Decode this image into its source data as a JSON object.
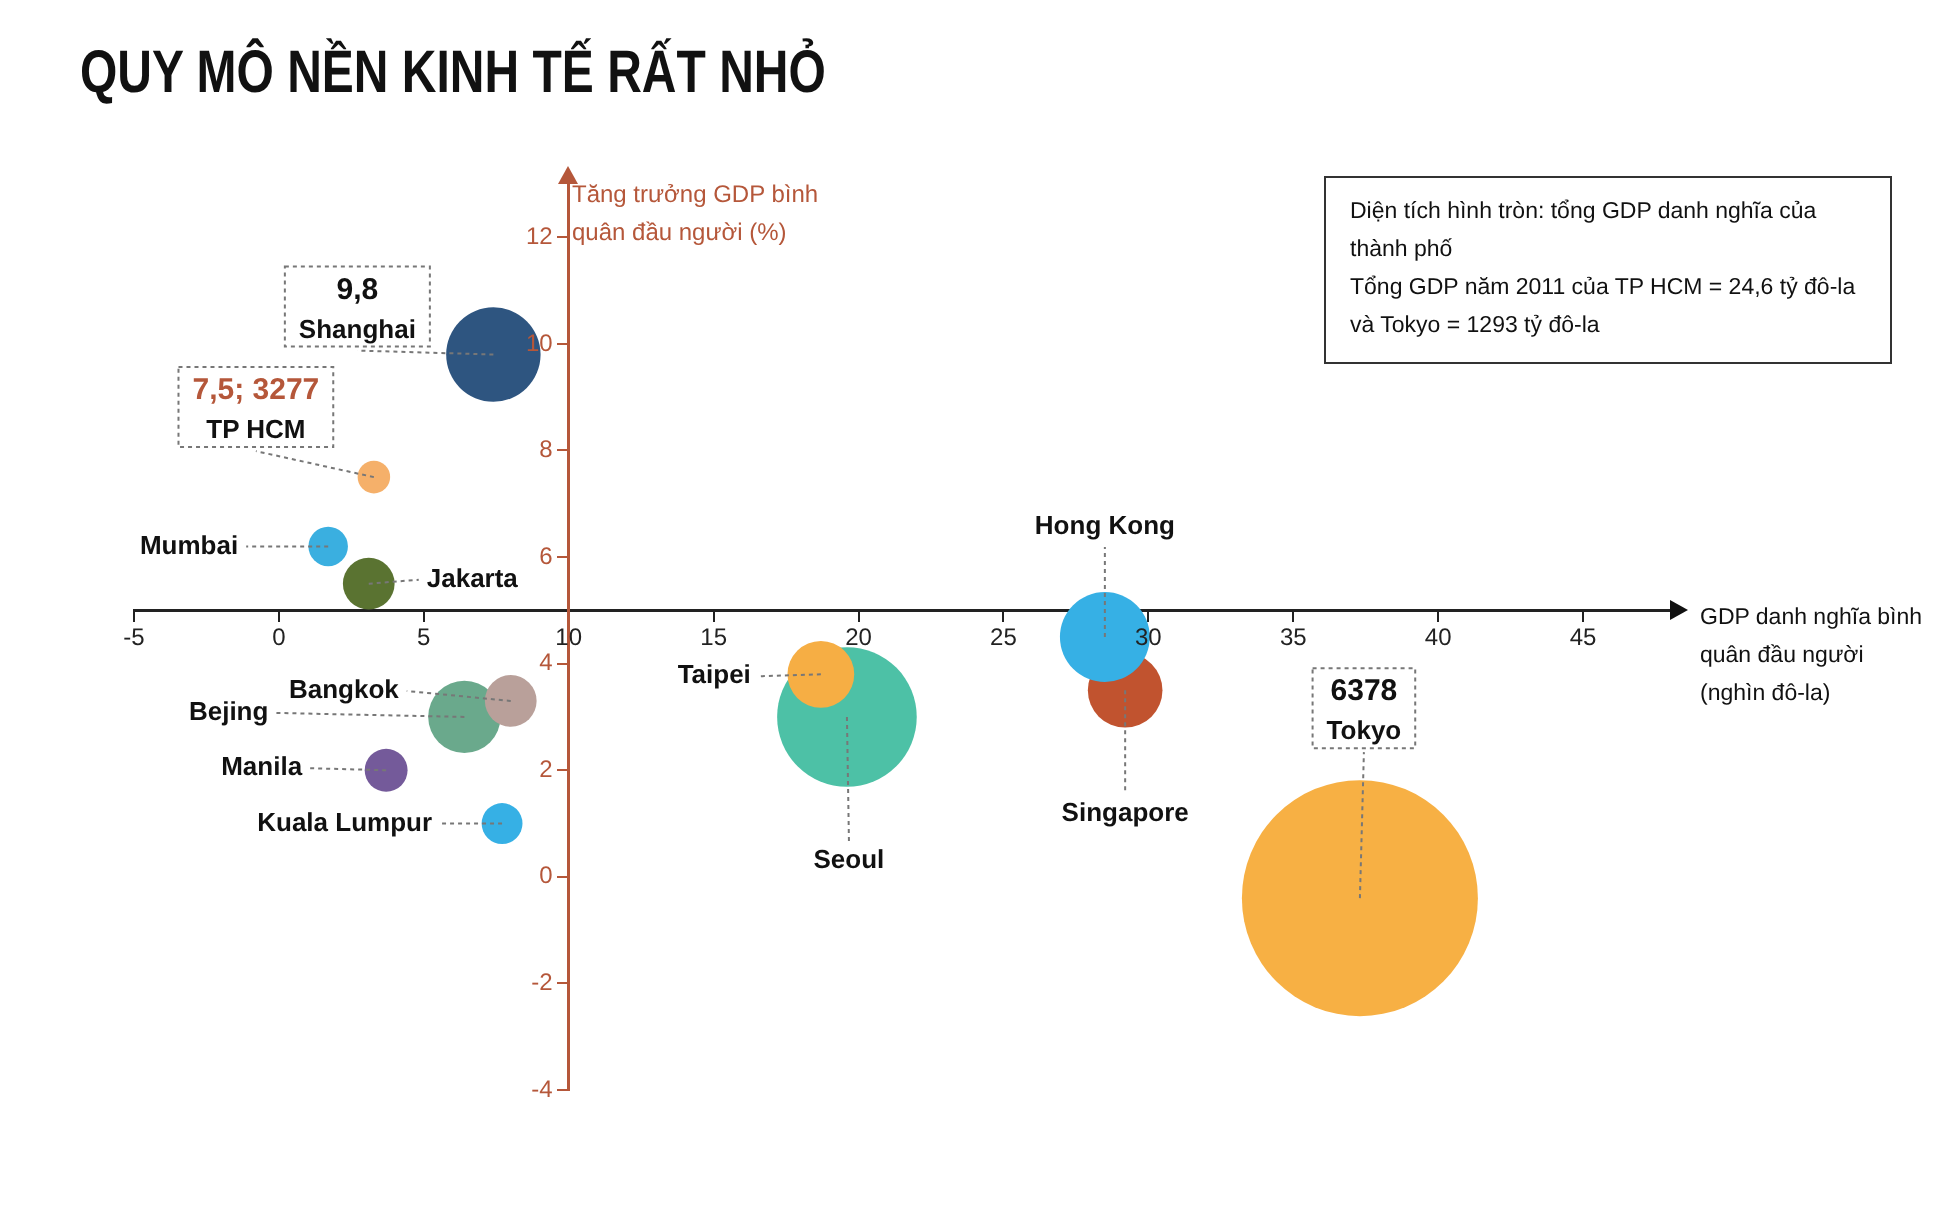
{
  "chart_data": {
    "type": "bubble",
    "title": "QUY MÔ NỀN KINH TẾ RẤT NHỎ",
    "xlabel": "GDP danh nghĩa bình quân đầu người (nghìn đô-la)",
    "ylabel": "Tăng trưởng GDP bình quân đầu người (%)",
    "annotations": [
      "Diện tích hình tròn: tổng GDP danh nghĩa của thành phố",
      "Tổng GDP năm 2011 của TP HCM = 24,6 tỷ đô-la và Tokyo = 1293 tỷ đô-la",
      "6378",
      "9,8"
    ],
    "xlim": [
      -5,
      48
    ],
    "ylim": [
      -4,
      13
    ],
    "xticks": [
      -5,
      0,
      5,
      10,
      15,
      20,
      25,
      30,
      35,
      40,
      45
    ],
    "yticks": [
      -4,
      -2,
      0,
      2,
      4,
      6,
      8,
      10,
      12
    ],
    "series": [
      {
        "name": "Shanghai",
        "color": "#2e5580",
        "x": [
          7.4
        ],
        "values": [
          9.8
        ],
        "sizes": [
          0.16
        ]
      },
      {
        "name": "TP HCM",
        "color": "#f5b06a",
        "x": [
          3.277
        ],
        "values": [
          7.5
        ],
        "sizes": [
          0.019
        ],
        "value_labels": [
          "7,5; 3277"
        ]
      },
      {
        "name": "Mumbai",
        "color": "#3aafe0",
        "x": [
          1.7
        ],
        "values": [
          6.2
        ],
        "sizes": [
          0.028
        ]
      },
      {
        "name": "Jakarta",
        "color": "#5a7331",
        "x": [
          3.1
        ],
        "values": [
          5.5
        ],
        "sizes": [
          0.048
        ]
      },
      {
        "name": "Bangkok",
        "color": "#b9a09a",
        "x": [
          8.0
        ],
        "values": [
          3.3
        ],
        "sizes": [
          0.048
        ]
      },
      {
        "name": "Bejing",
        "color": "#6aa98c",
        "x": [
          6.4
        ],
        "values": [
          3.0
        ],
        "sizes": [
          0.094
        ]
      },
      {
        "name": "Manila",
        "color": "#745a9a",
        "x": [
          3.7
        ],
        "values": [
          2.0
        ],
        "sizes": [
          0.033
        ]
      },
      {
        "name": "Kuala Lumpur",
        "color": "#36b0e5",
        "x": [
          7.7
        ],
        "values": [
          1.0
        ],
        "sizes": [
          0.03
        ]
      },
      {
        "name": "Taipei",
        "color": "#f6ae44",
        "x": [
          18.7
        ],
        "values": [
          3.8
        ],
        "sizes": [
          0.08
        ]
      },
      {
        "name": "Seoul",
        "color": "#4dc1a6",
        "x": [
          19.6
        ],
        "values": [
          3.0
        ],
        "sizes": [
          0.35
        ]
      },
      {
        "name": "Hong Kong",
        "color": "#36b0e5",
        "x": [
          28.5
        ],
        "values": [
          4.5
        ],
        "sizes": [
          0.145
        ]
      },
      {
        "name": "Singapore",
        "color": "#c1532f",
        "x": [
          29.2
        ],
        "values": [
          3.5
        ],
        "sizes": [
          0.1
        ]
      },
      {
        "name": "Tokyo",
        "color": "#f7b044",
        "x": [
          37.3
        ],
        "values": [
          -0.4
        ],
        "sizes": [
          1
        ]
      }
    ]
  }
}
